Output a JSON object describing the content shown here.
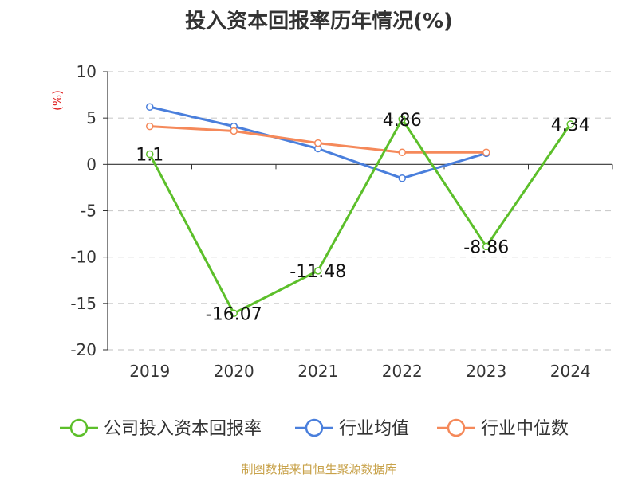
{
  "title": "投入资本回报率历年情况(%)",
  "source": "制图数据来自恒生聚源数据库",
  "chart_data": {
    "type": "line",
    "title": "投入资本回报率历年情况(%)",
    "ylabel": "(%)",
    "ylim": [
      -20,
      10
    ],
    "yticks": [
      10,
      5,
      0,
      -5,
      -10,
      -15,
      -20
    ],
    "categories": [
      "2019",
      "2020",
      "2021",
      "2022",
      "2023",
      "2024"
    ],
    "grid": true,
    "legend_position": "bottom",
    "series": [
      {
        "name": "公司投入资本回报率",
        "color": "#5cbf2a",
        "values": [
          1.1,
          -16.07,
          -11.48,
          4.86,
          -8.86,
          4.34
        ],
        "show_labels": true
      },
      {
        "name": "行业均值",
        "color": "#4a7fdc",
        "values": [
          6.2,
          4.1,
          1.7,
          -1.5,
          1.2,
          null
        ],
        "show_labels": false
      },
      {
        "name": "行业中位数",
        "color": "#f5895a",
        "values": [
          4.1,
          3.6,
          2.3,
          1.3,
          1.3,
          null
        ],
        "show_labels": false
      }
    ]
  }
}
